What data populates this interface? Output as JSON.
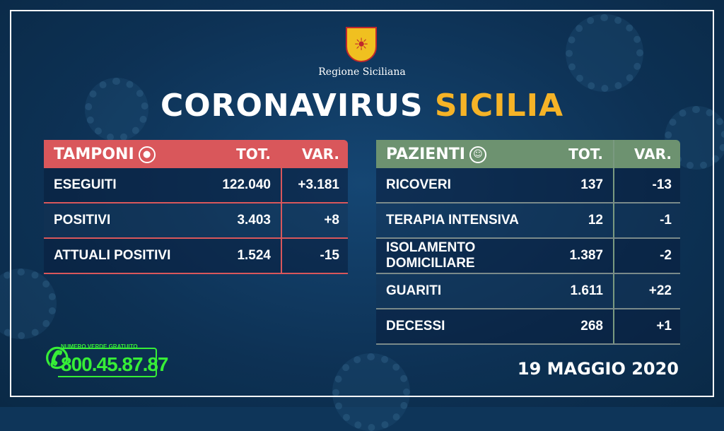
{
  "header": {
    "region": "Regione Siciliana",
    "title_part1": "CORONAVIRUS",
    "title_part2": "SICILIA"
  },
  "colors": {
    "background": "#0e3559",
    "tamponi_header": "#d9575b",
    "pazienti_header": "#6d9270",
    "accent_yellow": "#f5b327",
    "phone_green": "#37ee37"
  },
  "tamponi": {
    "title": "TAMPONI",
    "icon": "swab-icon",
    "col_tot": "TOT.",
    "col_var": "VAR.",
    "rows": [
      {
        "label": "ESEGUITI",
        "tot": "122.040",
        "var": "+3.181"
      },
      {
        "label": "POSITIVI",
        "tot": "3.403",
        "var": "+8"
      },
      {
        "label": "ATTUALI POSITIVI",
        "tot": "1.524",
        "var": "-15"
      }
    ]
  },
  "pazienti": {
    "title": "PAZIENTI",
    "icon": "person-icon",
    "col_tot": "TOT.",
    "col_var": "VAR.",
    "rows": [
      {
        "label": "RICOVERI",
        "tot": "137",
        "var": "-13"
      },
      {
        "label": "TERAPIA INTENSIVA",
        "tot": "12",
        "var": "-1"
      },
      {
        "label": "ISOLAMENTO DOMICILIARE",
        "tot": "1.387",
        "var": "-2"
      },
      {
        "label": "GUARITI",
        "tot": "1.611",
        "var": "+22"
      },
      {
        "label": "DECESSI",
        "tot": "268",
        "var": "+1"
      }
    ]
  },
  "hotline": {
    "label": "NUMERO VERDE GRATUITO",
    "number": "800.45.87.87",
    "icon": "phone-icon"
  },
  "date": "19 MAGGIO 2020"
}
